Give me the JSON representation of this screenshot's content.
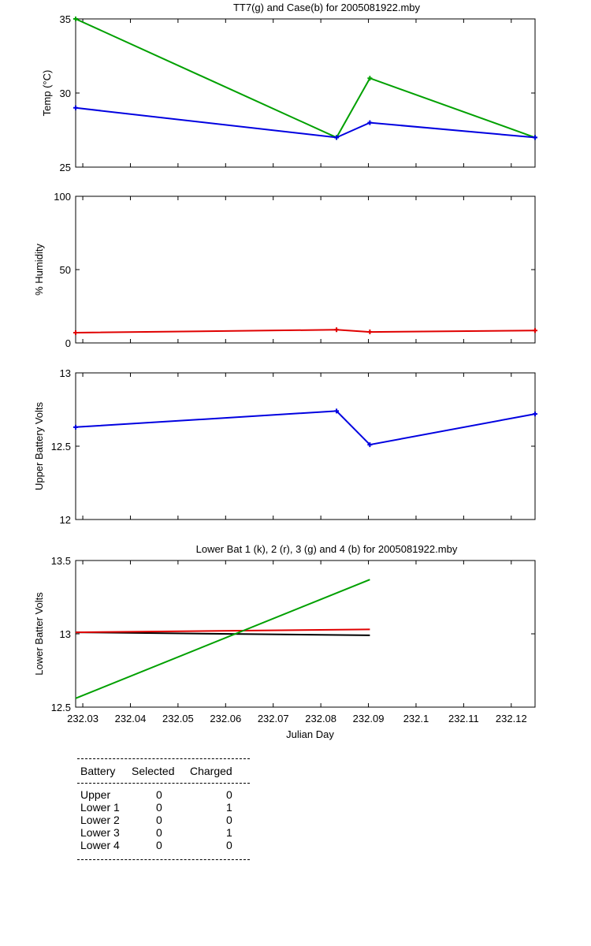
{
  "chart_data": [
    {
      "type": "line",
      "title": "TT7(g) and Case(b) for 2005081922.mby",
      "xlabel": "",
      "ylabel": "Temp  (°C)",
      "xlim": [
        232.0285,
        232.125
      ],
      "ylim": [
        25,
        35
      ],
      "yticks": [
        "25",
        "30",
        "35"
      ],
      "grid": false,
      "series": [
        {
          "color": "#00a000",
          "x": [
            232.0285,
            232.0833,
            232.0903,
            232.125
          ],
          "y": [
            35,
            27,
            31,
            27
          ]
        },
        {
          "color": "#0000e0",
          "x": [
            232.0285,
            232.0833,
            232.0903,
            232.125
          ],
          "y": [
            29,
            27,
            28,
            27
          ]
        }
      ]
    },
    {
      "type": "line",
      "title": "",
      "xlabel": "",
      "ylabel": "% Humidity",
      "xlim": [
        232.0285,
        232.125
      ],
      "ylim": [
        0,
        100
      ],
      "yticks": [
        "0",
        "50",
        "100"
      ],
      "grid": false,
      "series": [
        {
          "color": "#e00000",
          "x": [
            232.0285,
            232.0833,
            232.0903,
            232.125
          ],
          "y": [
            7,
            9,
            7.5,
            8.5
          ]
        }
      ]
    },
    {
      "type": "line",
      "title": "",
      "xlabel": "",
      "ylabel": "Upper Battery Volts",
      "xlim": [
        232.0285,
        232.125
      ],
      "ylim": [
        12,
        13
      ],
      "yticks": [
        "12",
        "12.5",
        "13"
      ],
      "grid": false,
      "series": [
        {
          "color": "#0000e0",
          "x": [
            232.0285,
            232.0833,
            232.0903,
            232.125
          ],
          "y": [
            12.63,
            12.74,
            12.51,
            12.72
          ]
        }
      ]
    },
    {
      "type": "line",
      "title": "Lower Bat 1 (k), 2 (r), 3 (g) and 4 (b) for 2005081922.mby",
      "xlabel": "Julian Day",
      "ylabel": "Lower Batter Volts",
      "xlim": [
        232.0285,
        232.125
      ],
      "ylim": [
        12.5,
        13.5
      ],
      "yticks": [
        "12.5",
        "13",
        "13.5"
      ],
      "xticks": [
        "232.03",
        "232.04",
        "232.05",
        "232.06",
        "232.07",
        "232.08",
        "232.09",
        "232.1",
        "232.11",
        "232.12"
      ],
      "grid": false,
      "series": [
        {
          "color": "#000000",
          "x": [
            232.0285,
            232.0903
          ],
          "y": [
            13.01,
            12.99
          ]
        },
        {
          "color": "#e00000",
          "x": [
            232.0285,
            232.0903
          ],
          "y": [
            13.01,
            13.03
          ]
        },
        {
          "color": "#00a000",
          "x": [
            232.0285,
            232.0903
          ],
          "y": [
            12.56,
            13.37
          ]
        }
      ]
    }
  ],
  "battery_table": {
    "headers": [
      "Battery",
      "Selected",
      "Charged"
    ],
    "rows": [
      {
        "name": "Upper",
        "selected": "0",
        "charged": "0"
      },
      {
        "name": "Lower 1",
        "selected": "0",
        "charged": "1"
      },
      {
        "name": "Lower 2",
        "selected": "0",
        "charged": "0"
      },
      {
        "name": "Lower 3",
        "selected": "0",
        "charged": "1"
      },
      {
        "name": "Lower 4",
        "selected": "0",
        "charged": "0"
      }
    ]
  }
}
